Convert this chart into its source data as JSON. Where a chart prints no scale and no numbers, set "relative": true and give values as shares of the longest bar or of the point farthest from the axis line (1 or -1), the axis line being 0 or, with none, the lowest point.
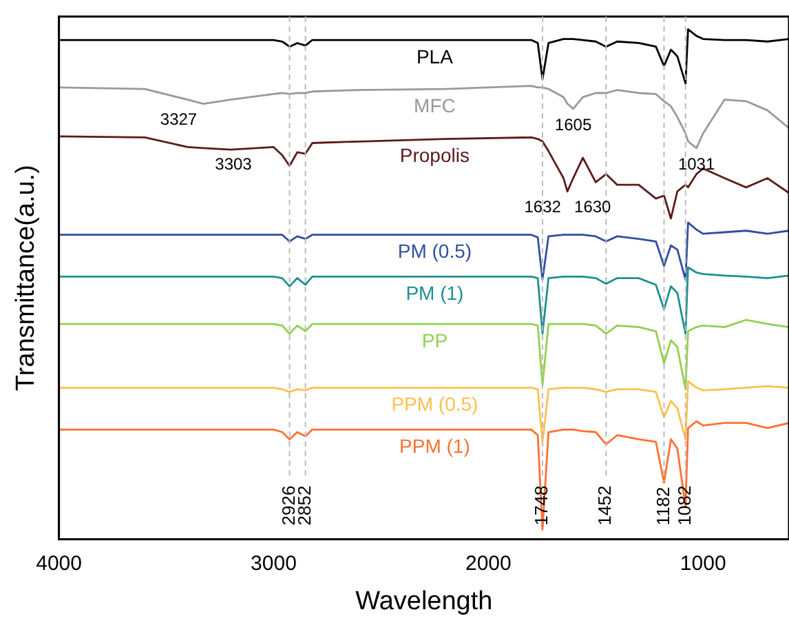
{
  "chart_data": {
    "type": "line",
    "xlabel": "Wavelength",
    "ylabel": "Transmittance(a.u.)",
    "relative": true,
    "xlim": [
      4000,
      600
    ],
    "xticks": [
      4000,
      3000,
      2000,
      1000
    ],
    "grid": false,
    "legend": false,
    "marker": "none",
    "line_style": "solid",
    "x": [
      4000,
      3600,
      3400,
      3327,
      3200,
      3000,
      2960,
      2926,
      2890,
      2852,
      2820,
      2600,
      2200,
      1800,
      1770,
      1748,
      1720,
      1650,
      1632,
      1605,
      1560,
      1500,
      1452,
      1400,
      1300,
      1220,
      1182,
      1150,
      1120,
      1082,
      1070,
      1031,
      1000,
      900,
      800,
      700,
      600
    ],
    "series": [
      {
        "name": "PLA",
        "color": "#000000",
        "values": [
          0.979,
          0.979,
          0.979,
          0.979,
          0.979,
          0.979,
          0.976,
          0.966,
          0.973,
          0.968,
          0.979,
          0.979,
          0.979,
          0.979,
          0.973,
          0.902,
          0.973,
          0.981,
          0.981,
          0.981,
          0.979,
          0.976,
          0.966,
          0.976,
          0.973,
          0.966,
          0.928,
          0.96,
          0.947,
          0.894,
          1,
          0.987,
          0.981,
          0.979,
          0.979,
          0.976,
          0.981
        ]
      },
      {
        "name": "MFC",
        "color": "#999999",
        "values": [
          0.886,
          0.883,
          0.862,
          0.854,
          0.862,
          0.873,
          0.875,
          0.873,
          0.875,
          0.875,
          0.878,
          0.881,
          0.883,
          0.889,
          0.886,
          0.886,
          0.883,
          0.867,
          0.854,
          0.844,
          0.867,
          0.875,
          0.875,
          0.881,
          0.875,
          0.873,
          0.859,
          0.849,
          0.828,
          0.796,
          0.78,
          0.767,
          0.796,
          0.862,
          0.859,
          0.841,
          0.806
        ]
      },
      {
        "name": "Propolis",
        "color": "#5c1a1a",
        "values": [
          0.79,
          0.788,
          0.769,
          0.767,
          0.764,
          0.769,
          0.753,
          0.732,
          0.759,
          0.756,
          0.777,
          0.78,
          0.785,
          0.788,
          0.785,
          0.78,
          0.761,
          0.708,
          0.682,
          0.708,
          0.748,
          0.7,
          0.716,
          0.695,
          0.695,
          0.668,
          0.674,
          0.629,
          0.682,
          0.695,
          0.69,
          0.716,
          0.727,
          0.708,
          0.69,
          0.708,
          0.679
        ]
      },
      {
        "name": "PM (0.5)",
        "color": "#2f4f9f",
        "values": [
          0.597,
          0.597,
          0.597,
          0.597,
          0.597,
          0.597,
          0.597,
          0.584,
          0.594,
          0.589,
          0.597,
          0.597,
          0.597,
          0.597,
          0.592,
          0.509,
          0.594,
          0.597,
          0.597,
          0.597,
          0.597,
          0.594,
          0.584,
          0.594,
          0.589,
          0.584,
          0.536,
          0.576,
          0.568,
          0.509,
          0.621,
          0.607,
          0.599,
          0.602,
          0.605,
          0.599,
          0.605
        ]
      },
      {
        "name": "PM (1)",
        "color": "#1f8f8f",
        "values": [
          0.515,
          0.515,
          0.515,
          0.515,
          0.515,
          0.515,
          0.512,
          0.496,
          0.512,
          0.499,
          0.515,
          0.515,
          0.515,
          0.515,
          0.512,
          0.403,
          0.512,
          0.515,
          0.515,
          0.515,
          0.515,
          0.512,
          0.501,
          0.512,
          0.512,
          0.499,
          0.451,
          0.496,
          0.483,
          0.403,
          0.533,
          0.523,
          0.52,
          0.517,
          0.515,
          0.512,
          0.517
        ]
      },
      {
        "name": "PP",
        "color": "#92d050",
        "values": [
          0.422,
          0.422,
          0.422,
          0.422,
          0.422,
          0.422,
          0.419,
          0.403,
          0.419,
          0.408,
          0.422,
          0.422,
          0.422,
          0.422,
          0.419,
          0.302,
          0.422,
          0.422,
          0.422,
          0.422,
          0.422,
          0.419,
          0.403,
          0.419,
          0.416,
          0.408,
          0.345,
          0.39,
          0.377,
          0.294,
          0.408,
          0.416,
          0.419,
          0.416,
          0.43,
          0.422,
          0.416
        ]
      },
      {
        "name": "PPM (0.5)",
        "color": "#ffc04d",
        "values": [
          0.297,
          0.297,
          0.297,
          0.297,
          0.297,
          0.297,
          0.294,
          0.289,
          0.294,
          0.292,
          0.297,
          0.297,
          0.297,
          0.297,
          0.294,
          0.191,
          0.294,
          0.297,
          0.297,
          0.297,
          0.297,
          0.294,
          0.289,
          0.294,
          0.294,
          0.289,
          0.239,
          0.271,
          0.257,
          0.196,
          0.31,
          0.297,
          0.292,
          0.294,
          0.297,
          0.3,
          0.297
        ]
      },
      {
        "name": "PPM (1)",
        "color": "#ff7033",
        "values": [
          0.215,
          0.215,
          0.215,
          0.215,
          0.215,
          0.215,
          0.21,
          0.196,
          0.21,
          0.202,
          0.215,
          0.215,
          0.215,
          0.215,
          0.204,
          0.019,
          0.21,
          0.215,
          0.215,
          0.215,
          0.212,
          0.21,
          0.186,
          0.204,
          0.196,
          0.191,
          0.111,
          0.196,
          0.178,
          0.064,
          0.218,
          0.231,
          0.223,
          0.228,
          0.228,
          0.218,
          0.228
        ]
      }
    ],
    "ref_lines": [
      {
        "axis": "x",
        "value": 2926,
        "label": "2926",
        "color": "#bbbbbb",
        "line_style": "dashed"
      },
      {
        "axis": "x",
        "value": 2852,
        "label": "2852",
        "color": "#bbbbbb",
        "line_style": "dashed"
      },
      {
        "axis": "x",
        "value": 1748,
        "label": "1748",
        "color": "#bbbbbb",
        "line_style": "dashed"
      },
      {
        "axis": "x",
        "value": 1452,
        "label": "1452",
        "color": "#bbbbbb",
        "line_style": "dashed"
      },
      {
        "axis": "x",
        "value": 1182,
        "label": "1182",
        "color": "#bbbbbb",
        "line_style": "dashed"
      },
      {
        "axis": "x",
        "value": 1082,
        "label": "1082",
        "color": "#bbbbbb",
        "line_style": "dashed"
      }
    ],
    "annotations": [
      {
        "text": "3327",
        "x": 3327,
        "y": 0.854
      },
      {
        "text": "3303",
        "x": 3303,
        "y": 0.767
      },
      {
        "text": "1605",
        "x": 1605,
        "y": 0.844
      },
      {
        "text": "1031",
        "x": 1031,
        "y": 0.767
      },
      {
        "text": "1632",
        "x": 1632,
        "y": 0.682
      },
      {
        "text": "1630",
        "x": 1630,
        "y": 0.682
      }
    ]
  }
}
